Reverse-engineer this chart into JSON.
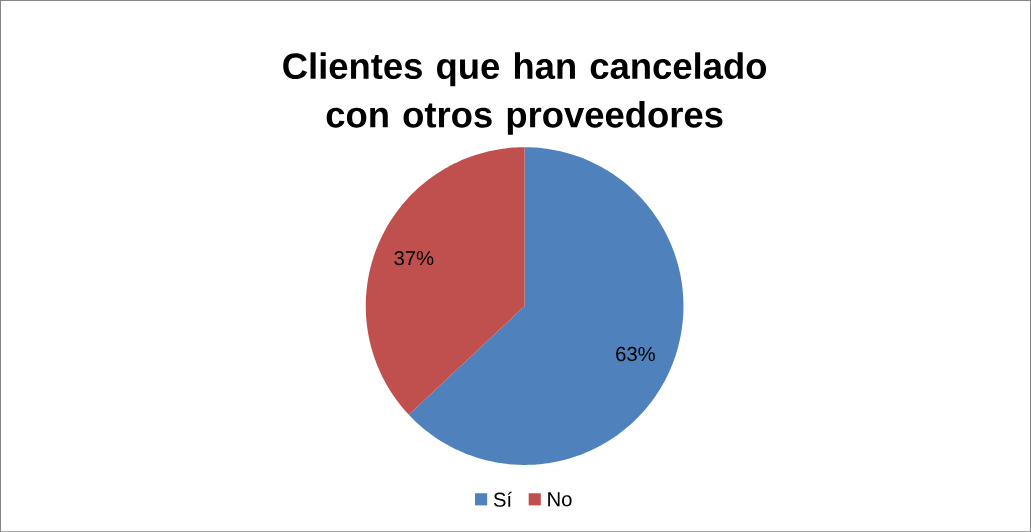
{
  "chart_data": {
    "type": "pie",
    "title": "Clientes que han cancelado con otros proveedores",
    "categories": [
      "Sí",
      "No"
    ],
    "values": [
      63,
      37
    ],
    "colors": [
      "#4f81bd",
      "#c0504d"
    ],
    "value_labels": [
      "63%",
      "37%"
    ],
    "legend": "bottom"
  }
}
